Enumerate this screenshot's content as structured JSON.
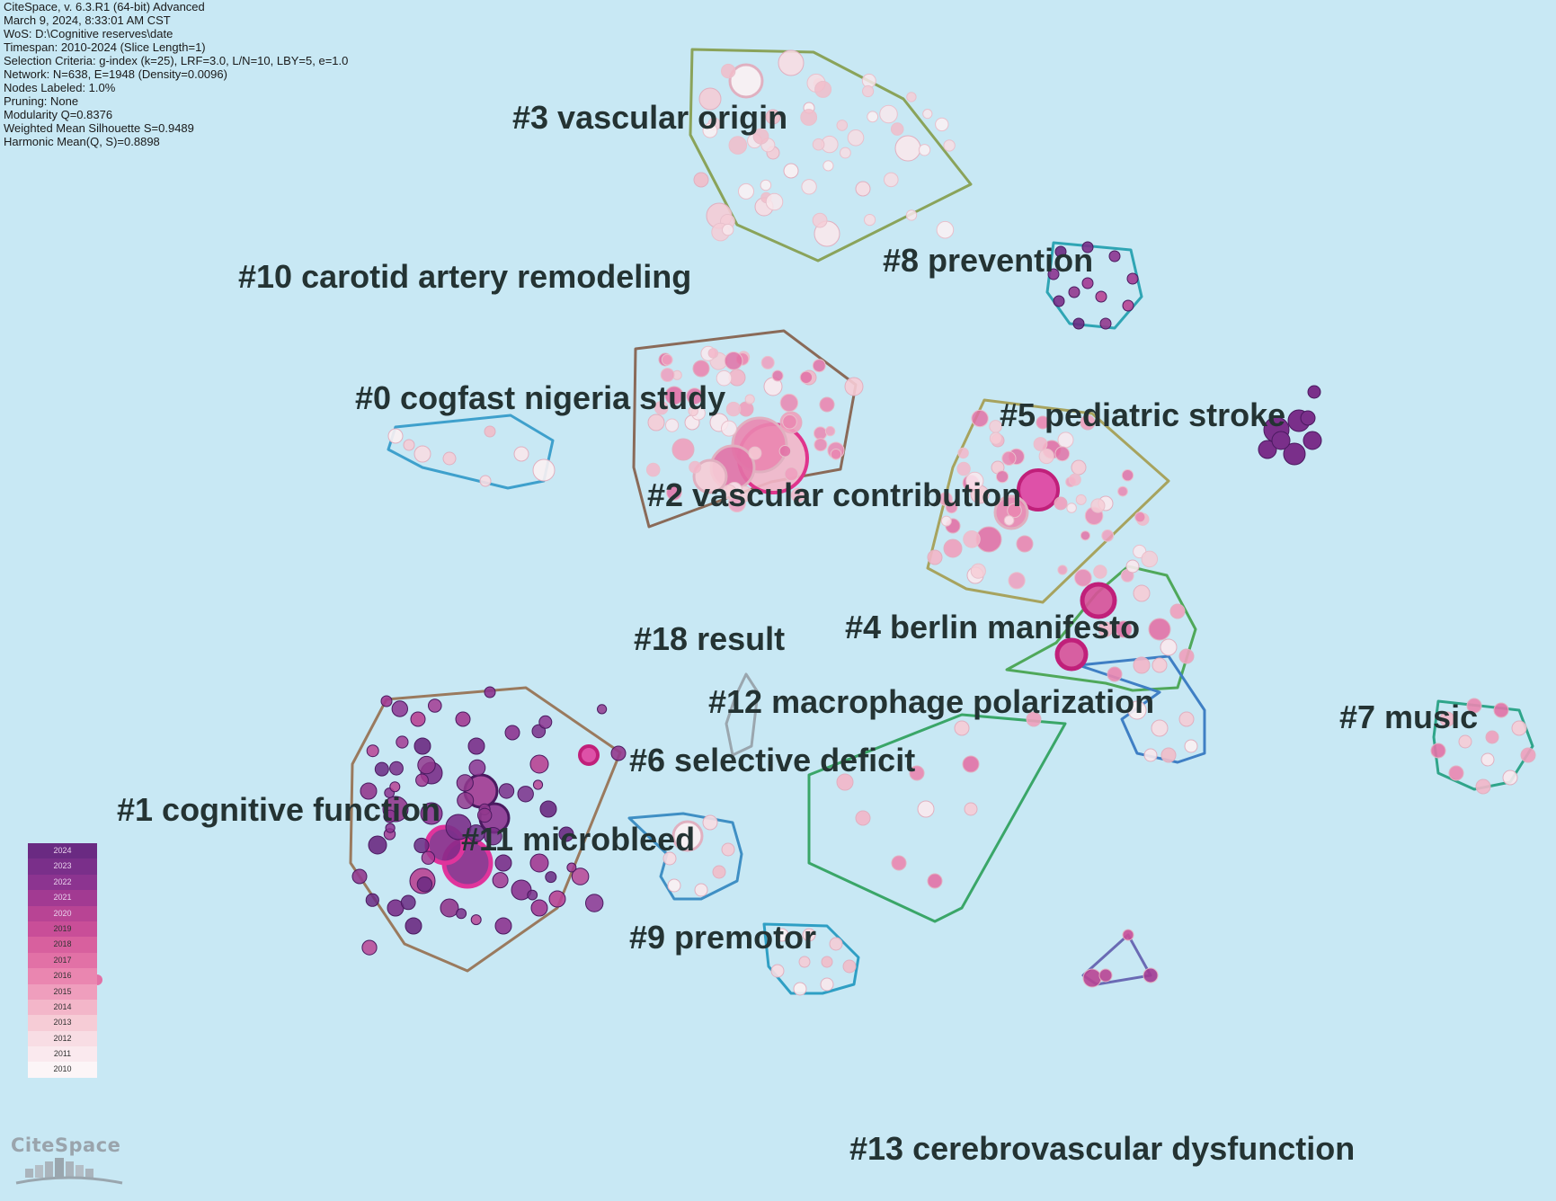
{
  "header": {
    "lines": [
      "CiteSpace, v. 6.3.R1 (64-bit) Advanced",
      "March 9, 2024, 8:33:01 AM CST",
      "WoS: D:\\Cognitive reserves\\date",
      "Timespan: 2010-2024 (Slice Length=1)",
      "Selection Criteria: g-index (k=25), LRF=3.0, L/N=10, LBY=5, e=1.0",
      "Network: N=638, E=1948 (Density=0.0096)",
      "Nodes Labeled: 1.0%",
      "Pruning: None",
      "Modularity Q=0.8376",
      "Weighted Mean Silhouette S=0.9489",
      "Harmonic Mean(Q, S)=0.8898"
    ]
  },
  "clusters": [
    {
      "id": "c3",
      "label": "#3 vascular origin",
      "hull": "#8aa35a",
      "palette": "light"
    },
    {
      "id": "c10",
      "label": "#10 carotid artery remodeling",
      "hull": null,
      "palette": null
    },
    {
      "id": "c8",
      "label": "#8 prevention",
      "hull": "#2fa5b4",
      "palette": "purple"
    },
    {
      "id": "c0",
      "label": "#0 cogfast nigeria study",
      "hull": "#3ea0cc",
      "palette": "light"
    },
    {
      "id": "c2",
      "label": "#2 vascular contribution",
      "hull": "#8a6a58",
      "palette": "pink"
    },
    {
      "id": "c5",
      "label": "#5 pediatric stroke",
      "hull": "#a7a35e",
      "palette": "pink"
    },
    {
      "id": "c18",
      "label": "#18 result",
      "hull": "#9aa6ae",
      "palette": null
    },
    {
      "id": "c4",
      "label": "#4 berlin manifesto",
      "hull": "#4fa85a",
      "palette": "pink"
    },
    {
      "id": "c12",
      "label": "#12 macrophage polarization",
      "hull": "#3f7fc4",
      "palette": "light"
    },
    {
      "id": "c7",
      "label": "#7 music",
      "hull": "#2fa58a",
      "palette": "pink"
    },
    {
      "id": "c6",
      "label": "#6 selective deficit",
      "hull": "#3aa668",
      "palette": "pink"
    },
    {
      "id": "c1",
      "label": "#1 cognitive function",
      "hull": "#9a7a5e",
      "palette": "purple"
    },
    {
      "id": "c11",
      "label": "#11 microbleed",
      "hull": "#3f8fc4",
      "palette": "light"
    },
    {
      "id": "c9",
      "label": "#9 premotor",
      "hull": "#2f9fc4",
      "palette": "light"
    },
    {
      "id": "c13",
      "label": "#13 cerebrovascular dysfunction",
      "hull": "#6a6ab4",
      "palette": "magenta"
    }
  ],
  "legend": {
    "years": [
      "2024",
      "2023",
      "2022",
      "2021",
      "2020",
      "2019",
      "2018",
      "2017",
      "2016",
      "2015",
      "2014",
      "2013",
      "2012",
      "2011",
      "2010"
    ],
    "colors": [
      "#6a2a82",
      "#7a2f8a",
      "#8c3490",
      "#a23a92",
      "#b84494",
      "#c94e98",
      "#d8609e",
      "#e271a6",
      "#ea86b0",
      "#ef9ebd",
      "#f3b6c9",
      "#f6ccd6",
      "#f8dde4",
      "#fae9ee",
      "#fcf5f7"
    ]
  },
  "branding": {
    "logo_text": "CiteSpace",
    "logo_icon": "citespace-logo-icon"
  }
}
